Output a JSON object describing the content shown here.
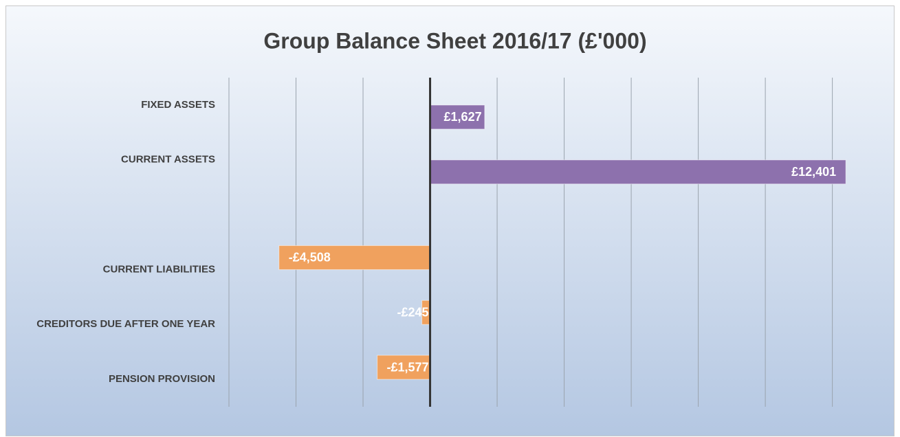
{
  "chart_data": {
    "type": "bar",
    "orientation": "horizontal",
    "title": "Group Balance Sheet 2016/17 (£'000)",
    "categories": [
      "FIXED ASSETS",
      "CURRENT ASSETS",
      null,
      "CURRENT LIABILITIES",
      "CREDITORS DUE AFTER ONE YEAR",
      "PENSION PROVISION"
    ],
    "series": [
      {
        "color": "#f0a15e",
        "values": [
          null,
          null,
          null,
          -4508,
          -245,
          -1577
        ],
        "value_labels": [
          null,
          null,
          null,
          "-£4,508",
          "-£245",
          "-£1,577"
        ]
      },
      {
        "color": "#8d71ad",
        "values": [
          1627,
          12401,
          null,
          null,
          null,
          null
        ],
        "value_labels": [
          "£1,627",
          "£12,401",
          null,
          null,
          null,
          null
        ]
      }
    ],
    "xlim": [
      -6000,
      12500
    ],
    "xticks": [
      -6000,
      -4000,
      -2000,
      0,
      2000,
      4000,
      6000,
      8000,
      10000,
      12000
    ],
    "grid": true
  }
}
